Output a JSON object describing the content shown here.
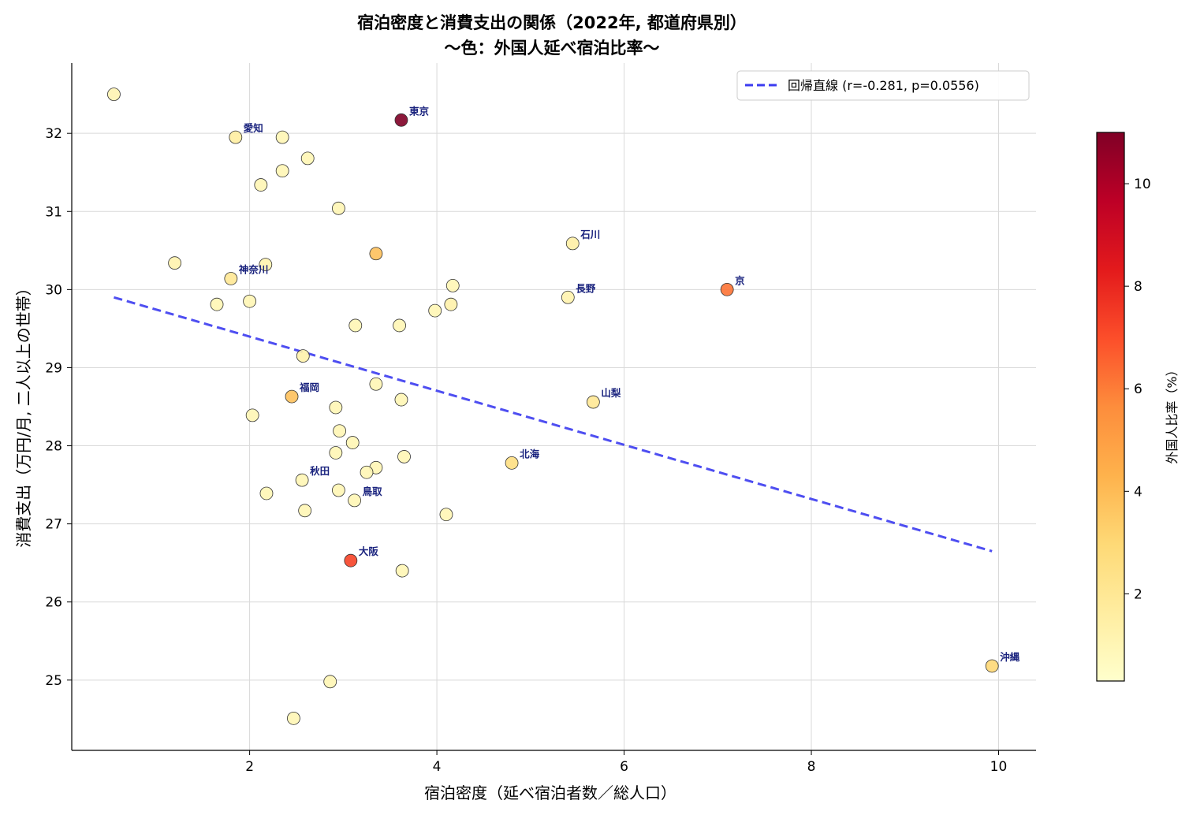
{
  "chart_data": {
    "type": "scatter",
    "title": "宿泊密度と消費支出の関係（2022年, 都道府県別）",
    "subtitle": "〜色：外国人延べ宿泊比率〜",
    "xlabel": "宿泊密度（延べ宿泊者数／総人口）",
    "ylabel": "消費支出（万円/月, 二人以上の世帯）",
    "colorbar_label": "外国人比率（%）",
    "xlim": [
      0.1,
      10.4
    ],
    "ylim": [
      24.1,
      32.9
    ],
    "xticks": [
      2,
      4,
      6,
      8,
      10
    ],
    "yticks": [
      25,
      26,
      27,
      28,
      29,
      30,
      31,
      32
    ],
    "color_range": [
      0.3,
      11.0
    ],
    "colorbar_ticks": [
      2,
      4,
      6,
      8,
      10
    ],
    "colormap": [
      "#ffffcc",
      "#ffeda0",
      "#fed976",
      "#feb24c",
      "#fd8d3c",
      "#fc4e2a",
      "#e31a1c",
      "#bd0026",
      "#800026"
    ],
    "grid": true,
    "legend_position": "upper-right",
    "regression": {
      "label": "回帰直線 (r=-0.281, p=0.0556)",
      "x": [
        0.55,
        9.93
      ],
      "y": [
        29.9,
        26.65
      ],
      "color": "#3b3bf0"
    },
    "points": [
      {
        "x": 0.55,
        "y": 32.5,
        "c": 1.1
      },
      {
        "x": 3.62,
        "y": 32.17,
        "c": 11.0,
        "label": "東京"
      },
      {
        "x": 1.85,
        "y": 31.95,
        "c": 1.6,
        "label": "愛知"
      },
      {
        "x": 2.35,
        "y": 31.95,
        "c": 1.0
      },
      {
        "x": 2.62,
        "y": 31.68,
        "c": 1.0
      },
      {
        "x": 2.35,
        "y": 31.52,
        "c": 1.0
      },
      {
        "x": 2.12,
        "y": 31.34,
        "c": 1.0
      },
      {
        "x": 2.95,
        "y": 31.04,
        "c": 1.0
      },
      {
        "x": 5.45,
        "y": 30.59,
        "c": 1.5,
        "label": "石川"
      },
      {
        "x": 3.35,
        "y": 30.46,
        "c": 3.8
      },
      {
        "x": 1.2,
        "y": 30.34,
        "c": 1.2
      },
      {
        "x": 2.17,
        "y": 30.32,
        "c": 1.2
      },
      {
        "x": 1.8,
        "y": 30.14,
        "c": 2.0,
        "label": "神奈川"
      },
      {
        "x": 7.1,
        "y": 30.0,
        "c": 6.2,
        "label": "京"
      },
      {
        "x": 5.4,
        "y": 29.9,
        "c": 1.2,
        "label": "長野"
      },
      {
        "x": 4.17,
        "y": 30.05,
        "c": 1.0
      },
      {
        "x": 1.65,
        "y": 29.81,
        "c": 1.0
      },
      {
        "x": 2.0,
        "y": 29.85,
        "c": 1.0
      },
      {
        "x": 4.15,
        "y": 29.81,
        "c": 1.3
      },
      {
        "x": 3.98,
        "y": 29.73,
        "c": 1.0
      },
      {
        "x": 3.13,
        "y": 29.54,
        "c": 1.0
      },
      {
        "x": 3.6,
        "y": 29.54,
        "c": 1.0
      },
      {
        "x": 2.57,
        "y": 29.15,
        "c": 1.3
      },
      {
        "x": 3.35,
        "y": 28.79,
        "c": 1.0
      },
      {
        "x": 2.45,
        "y": 28.63,
        "c": 3.8,
        "label": "福岡"
      },
      {
        "x": 3.62,
        "y": 28.59,
        "c": 1.0
      },
      {
        "x": 5.67,
        "y": 28.56,
        "c": 2.0,
        "label": "山梨"
      },
      {
        "x": 2.92,
        "y": 28.49,
        "c": 1.0
      },
      {
        "x": 2.03,
        "y": 28.39,
        "c": 1.0
      },
      {
        "x": 2.96,
        "y": 28.19,
        "c": 1.0
      },
      {
        "x": 3.1,
        "y": 28.04,
        "c": 1.0
      },
      {
        "x": 2.92,
        "y": 27.91,
        "c": 1.0
      },
      {
        "x": 3.65,
        "y": 27.86,
        "c": 1.0
      },
      {
        "x": 4.8,
        "y": 27.78,
        "c": 2.6,
        "label": "北海"
      },
      {
        "x": 3.35,
        "y": 27.72,
        "c": 1.0
      },
      {
        "x": 3.25,
        "y": 27.66,
        "c": 1.0
      },
      {
        "x": 2.56,
        "y": 27.56,
        "c": 1.0,
        "label": "秋田"
      },
      {
        "x": 2.95,
        "y": 27.43,
        "c": 1.0
      },
      {
        "x": 2.18,
        "y": 27.39,
        "c": 1.0
      },
      {
        "x": 3.12,
        "y": 27.3,
        "c": 1.0,
        "label": "鳥取"
      },
      {
        "x": 2.59,
        "y": 27.17,
        "c": 1.0
      },
      {
        "x": 4.1,
        "y": 27.12,
        "c": 1.0
      },
      {
        "x": 3.08,
        "y": 26.53,
        "c": 7.3,
        "label": "大阪"
      },
      {
        "x": 3.63,
        "y": 26.4,
        "c": 1.0
      },
      {
        "x": 9.93,
        "y": 25.18,
        "c": 3.0,
        "label": "沖縄"
      },
      {
        "x": 2.86,
        "y": 24.98,
        "c": 1.0
      },
      {
        "x": 2.47,
        "y": 24.51,
        "c": 1.0
      }
    ]
  }
}
